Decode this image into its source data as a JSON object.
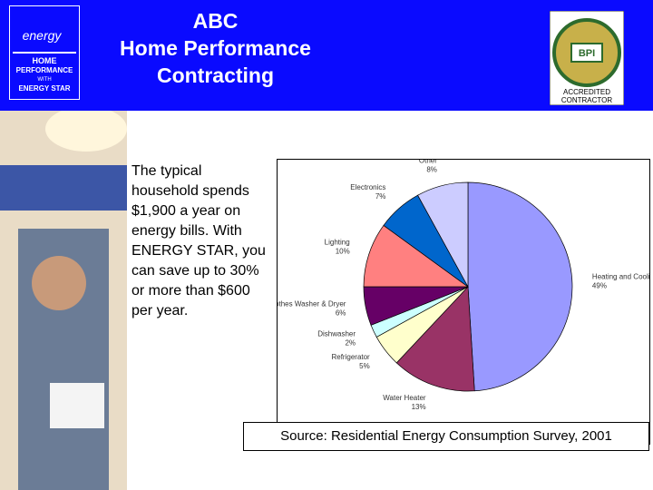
{
  "header": {
    "title_lines": [
      "ABC",
      "Home Performance",
      "Contracting"
    ],
    "left_logo": {
      "script": "energy",
      "lines": [
        "HOME",
        "PERFORMANCE",
        "WITH",
        "ENERGY STAR"
      ]
    },
    "right_logo": {
      "badge": "BPI",
      "lines": [
        "ACCREDITED",
        "CONTRACTOR"
      ]
    }
  },
  "body_text": "The typical household spends $1,900 a year on energy bills. With ENERGY STAR, you can save up to 30% or more than $600 per year.",
  "source": "Source: Residential Energy Consumption Survey, 2001",
  "chart_data": {
    "type": "pie",
    "categories": [
      "Heating and Cooling",
      "Water Heater",
      "Refrigerator",
      "Dishwasher",
      "Clothes Washer & Dryer",
      "Lighting",
      "Electronics",
      "Other"
    ],
    "values": [
      49,
      13,
      5,
      2,
      6,
      10,
      7,
      8
    ],
    "value_labels": [
      "49%",
      "13%",
      "5%",
      "2%",
      "6%",
      "10%",
      "7%",
      "8%"
    ],
    "colors": [
      "#9999ff",
      "#993366",
      "#ffffcc",
      "#ccffff",
      "#660066",
      "#ff8080",
      "#0066cc",
      "#ccccff"
    ]
  }
}
